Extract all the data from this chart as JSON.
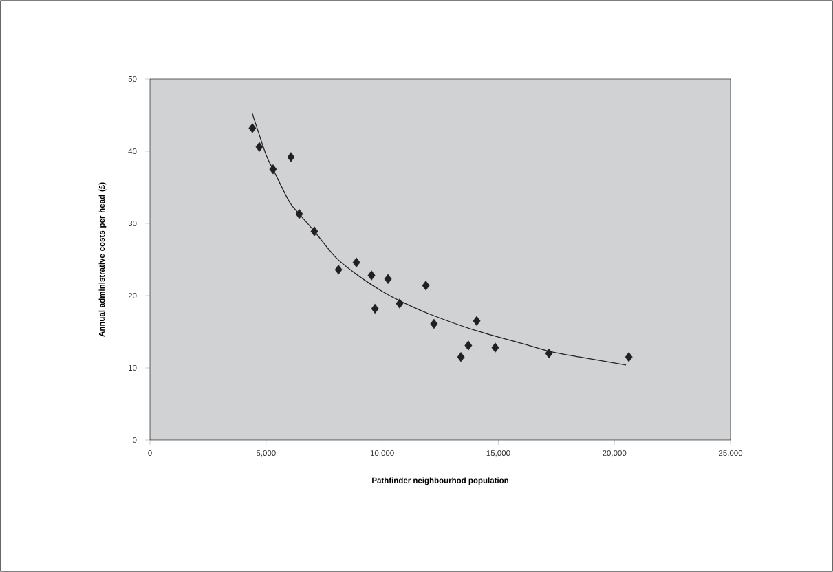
{
  "chart_data": {
    "type": "scatter",
    "xlabel": "Pathfinder neighbourhod population",
    "ylabel": "Annual administrative costs per head (£)",
    "xlim": [
      0,
      25000
    ],
    "ylim": [
      0,
      50
    ],
    "xticks": [
      {
        "value": 0,
        "label": "0"
      },
      {
        "value": 5000,
        "label": "5,000"
      },
      {
        "value": 10000,
        "label": "10,000"
      },
      {
        "value": 15000,
        "label": "15,000"
      },
      {
        "value": 20000,
        "label": "20,000"
      },
      {
        "value": 25000,
        "label": "25,000"
      }
    ],
    "yticks": [
      0,
      10,
      20,
      30,
      40,
      50
    ],
    "grid": false,
    "marker": "diamond",
    "series": [
      {
        "color": "#231f20",
        "x": [
          4410,
          4710,
          5300,
          6070,
          6430,
          7080,
          8120,
          8890,
          9540,
          9690,
          10250,
          10750,
          11880,
          12230,
          13390,
          13710,
          14070,
          14870,
          17180,
          20620
        ],
        "values": [
          43.2,
          40.6,
          37.5,
          39.2,
          31.3,
          28.9,
          23.6,
          24.6,
          22.8,
          18.2,
          22.3,
          18.9,
          21.4,
          16.1,
          11.5,
          13.1,
          16.5,
          12.8,
          12.0,
          11.5
        ]
      },
      {
        "type": "line",
        "color": "#231f20",
        "marker": "none",
        "line_style": "solid",
        "x": [
          4400,
          5000,
          5300,
          6000,
          6430,
          7080,
          8000,
          9000,
          10000,
          10750,
          12000,
          14000,
          16000,
          17180,
          18500,
          20500
        ],
        "values": [
          45.3,
          39.5,
          37.5,
          33.0,
          31.3,
          28.9,
          25.3,
          22.7,
          20.6,
          19.3,
          17.5,
          15.2,
          13.4,
          12.3,
          11.5,
          10.4
        ]
      }
    ]
  }
}
